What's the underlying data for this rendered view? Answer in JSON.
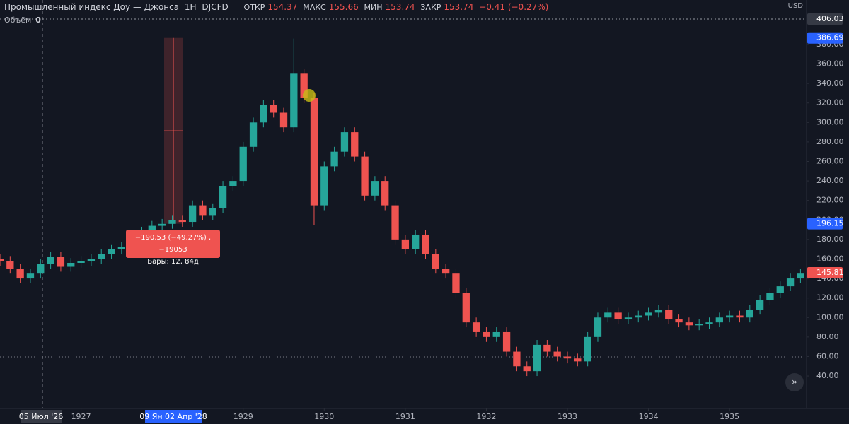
{
  "chart_data": {
    "type": "candlestick",
    "header": {
      "title": "Промышленный индекс Доу — Джонса",
      "interval": "1Н",
      "ticker": "DJCFD",
      "open_label": "ОТКР",
      "open": "154.37",
      "high_label": "МАКС",
      "high": "155.66",
      "low_label": "МИН",
      "low": "153.74",
      "close_label": "ЗАКР",
      "close": "153.74",
      "change": "−0.41 (−0.27%)"
    },
    "volume_label": "Объём",
    "volume": "0",
    "currency": "USD",
    "up_color": "#26a69a",
    "down_color": "#ef5350",
    "x": [
      1926,
      1926.125,
      1926.25,
      1926.375,
      1926.5,
      1926.625,
      1926.75,
      1926.875,
      1927,
      1927.125,
      1927.25,
      1927.375,
      1927.5,
      1927.625,
      1927.75,
      1927.875,
      1928,
      1928.125,
      1928.25,
      1928.375,
      1928.5,
      1928.625,
      1928.75,
      1928.875,
      1929,
      1929.125,
      1929.25,
      1929.375,
      1929.5,
      1929.625,
      1929.75,
      1929.875,
      1930,
      1930.125,
      1930.25,
      1930.375,
      1930.5,
      1930.625,
      1930.75,
      1930.875,
      1931,
      1931.125,
      1931.25,
      1931.375,
      1931.5,
      1931.625,
      1931.75,
      1931.875,
      1932,
      1932.125,
      1932.25,
      1932.375,
      1932.5,
      1932.625,
      1932.75,
      1932.875,
      1933,
      1933.125,
      1933.25,
      1933.375,
      1933.5,
      1933.625,
      1933.75,
      1933.875,
      1934,
      1934.125,
      1934.25,
      1934.375,
      1934.5,
      1934.625,
      1934.75,
      1934.875,
      1935,
      1935.125,
      1935.25,
      1935.375,
      1935.5,
      1935.625,
      1935.75,
      1935.875
    ],
    "open": [
      160,
      158,
      150,
      140,
      145,
      155,
      162,
      152,
      156,
      158,
      160,
      165,
      170,
      172,
      180,
      188,
      194,
      196,
      200,
      198,
      215,
      205,
      212,
      235,
      240,
      275,
      300,
      318,
      310,
      295,
      350,
      325,
      215,
      255,
      270,
      290,
      265,
      225,
      240,
      215,
      180,
      170,
      185,
      165,
      150,
      145,
      125,
      95,
      85,
      80,
      85,
      65,
      50,
      45,
      72,
      65,
      60,
      58,
      55,
      80,
      100,
      105,
      98,
      100,
      102,
      105,
      108,
      98,
      95,
      92,
      93,
      95,
      100,
      102,
      100,
      108,
      118,
      125,
      132,
      140
    ],
    "high": [
      165,
      163,
      155,
      150,
      160,
      167,
      167,
      161,
      163,
      165,
      170,
      175,
      177,
      185,
      193,
      199,
      201,
      205,
      205,
      220,
      220,
      217,
      240,
      245,
      280,
      305,
      323,
      323,
      315,
      386,
      355,
      330,
      260,
      275,
      295,
      295,
      270,
      245,
      245,
      220,
      185,
      190,
      190,
      170,
      155,
      150,
      130,
      100,
      90,
      90,
      90,
      70,
      55,
      77,
      77,
      70,
      65,
      63,
      85,
      105,
      110,
      110,
      105,
      107,
      110,
      113,
      113,
      103,
      100,
      98,
      100,
      105,
      107,
      107,
      113,
      123,
      130,
      137,
      145,
      150
    ],
    "low": [
      153,
      145,
      135,
      135,
      140,
      150,
      147,
      147,
      151,
      153,
      155,
      160,
      165,
      167,
      175,
      183,
      189,
      191,
      193,
      193,
      200,
      200,
      207,
      230,
      235,
      270,
      295,
      305,
      290,
      290,
      320,
      195,
      210,
      250,
      265,
      260,
      220,
      220,
      210,
      175,
      165,
      165,
      160,
      145,
      140,
      120,
      90,
      80,
      75,
      75,
      60,
      45,
      40,
      40,
      60,
      55,
      53,
      50,
      50,
      75,
      95,
      93,
      93,
      95,
      97,
      100,
      93,
      90,
      87,
      87,
      88,
      90,
      95,
      95,
      95,
      103,
      113,
      120,
      127,
      135
    ],
    "close": [
      158,
      150,
      140,
      145,
      155,
      162,
      152,
      156,
      158,
      160,
      165,
      170,
      172,
      180,
      188,
      194,
      196,
      200,
      198,
      215,
      205,
      212,
      235,
      240,
      275,
      300,
      318,
      310,
      295,
      350,
      325,
      215,
      255,
      270,
      290,
      265,
      225,
      240,
      215,
      180,
      170,
      185,
      165,
      150,
      145,
      125,
      95,
      85,
      80,
      85,
      65,
      50,
      45,
      72,
      65,
      60,
      58,
      55,
      80,
      100,
      105,
      98,
      100,
      102,
      105,
      108,
      98,
      95,
      92,
      93,
      95,
      100,
      102,
      100,
      108,
      118,
      125,
      132,
      140,
      145
    ],
    "xlim": [
      1926,
      1935.95
    ],
    "xticks": [
      1927,
      1929,
      1930,
      1931,
      1932,
      1933,
      1934,
      1935
    ],
    "crosshair_x_label": "05 Июл '26",
    "range_x_label": "09 Ян 02 Апр '28",
    "ylim": [
      6.7,
      425.6
    ],
    "yticks": [
      {
        "value": 40,
        "label": "40.00"
      },
      {
        "value": 60,
        "label": "60.00"
      },
      {
        "value": 80,
        "label": "80.00"
      },
      {
        "value": 100,
        "label": "100.00"
      },
      {
        "value": 120,
        "label": "120.00"
      },
      {
        "value": 140,
        "label": "140.00"
      },
      {
        "value": 160,
        "label": "160.00"
      },
      {
        "value": 180,
        "label": "180.00"
      },
      {
        "value": 200,
        "label": "200.00"
      },
      {
        "value": 220,
        "label": "220.00"
      },
      {
        "value": 240,
        "label": "240.00"
      },
      {
        "value": 260,
        "label": "260.00"
      },
      {
        "value": 280,
        "label": "280.00"
      },
      {
        "value": 300,
        "label": "300.00"
      },
      {
        "value": 320,
        "label": "320.00"
      },
      {
        "value": 340,
        "label": "340.00"
      },
      {
        "value": 360,
        "label": "360.00"
      },
      {
        "value": 380,
        "label": "380.00"
      }
    ],
    "price_labels": [
      {
        "value": 406.03,
        "color": "#363a45"
      },
      {
        "value": 386.69,
        "color": "#2962ff"
      },
      {
        "value": 196.15,
        "color": "#2962ff"
      },
      {
        "value": 145.81,
        "color": "#ef5350"
      }
    ],
    "measure": {
      "line1": "−190.53 (−49.27%) , −19053",
      "line2": "Бары: 12, 84д"
    }
  }
}
